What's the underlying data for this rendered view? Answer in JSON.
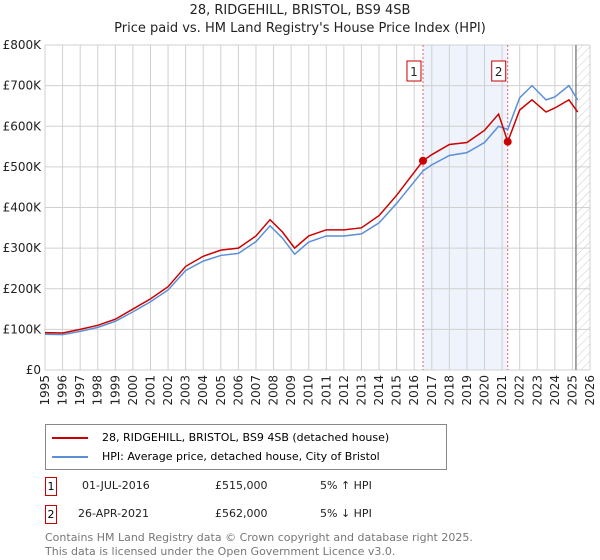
{
  "chart_data": {
    "type": "line",
    "title": "28, RIDGEHILL, BRISTOL, BS9 4SB",
    "subtitle": "Price paid vs. HM Land Registry's House Price Index (HPI)",
    "xlim": [
      1995,
      2026
    ],
    "ylim": [
      0,
      800000
    ],
    "x_ticks": [
      "1995",
      "1996",
      "1997",
      "1998",
      "1999",
      "2000",
      "2001",
      "2002",
      "2003",
      "2004",
      "2005",
      "2006",
      "2007",
      "2008",
      "2009",
      "2010",
      "2011",
      "2012",
      "2013",
      "2014",
      "2015",
      "2016",
      "2017",
      "2018",
      "2019",
      "2020",
      "2021",
      "2022",
      "2023",
      "2024",
      "2025",
      "2026"
    ],
    "y_ticks": [
      {
        "v": 0,
        "l": "£0"
      },
      {
        "v": 100000,
        "l": "£100K"
      },
      {
        "v": 200000,
        "l": "£200K"
      },
      {
        "v": 300000,
        "l": "£300K"
      },
      {
        "v": 400000,
        "l": "£400K"
      },
      {
        "v": 500000,
        "l": "£500K"
      },
      {
        "v": 600000,
        "l": "£600K"
      },
      {
        "v": 700000,
        "l": "£700K"
      },
      {
        "v": 800000,
        "l": "£800K"
      }
    ],
    "series": [
      {
        "name": "28, RIDGEHILL, BRISTOL, BS9 4SB (detached house)",
        "color": "#cc0000",
        "x": [
          1995,
          1996,
          1997,
          1998,
          1999,
          2000,
          2001,
          2002,
          2003,
          2004,
          2005,
          2006,
          2007,
          2007.8,
          2008.5,
          2009.2,
          2010,
          2011,
          2012,
          2013,
          2014,
          2015,
          2016.5,
          2017,
          2018,
          2019,
          2020,
          2020.8,
          2021.32,
          2022,
          2022.7,
          2023.5,
          2024,
          2024.8,
          2025.3
        ],
        "y": [
          92000,
          91000,
          100000,
          110000,
          125000,
          150000,
          175000,
          205000,
          255000,
          280000,
          295000,
          300000,
          330000,
          370000,
          340000,
          300000,
          330000,
          345000,
          345000,
          350000,
          380000,
          430000,
          515000,
          530000,
          555000,
          560000,
          590000,
          630000,
          562000,
          640000,
          665000,
          635000,
          645000,
          665000,
          635000
        ]
      },
      {
        "name": "HPI: Average price, detached house, City of Bristol",
        "color": "#5b8fd6",
        "x": [
          1995,
          1996,
          1997,
          1998,
          1999,
          2000,
          2001,
          2002,
          2003,
          2004,
          2005,
          2006,
          2007,
          2007.8,
          2008.5,
          2009.2,
          2010,
          2011,
          2012,
          2013,
          2014,
          2015,
          2016.5,
          2017,
          2018,
          2019,
          2020,
          2020.8,
          2021.32,
          2022,
          2022.7,
          2023.5,
          2024,
          2024.8,
          2025.3
        ],
        "y": [
          88000,
          87000,
          95000,
          105000,
          120000,
          143000,
          168000,
          197000,
          245000,
          268000,
          282000,
          287000,
          316000,
          355000,
          325000,
          285000,
          315000,
          330000,
          330000,
          335000,
          362000,
          410000,
          490000,
          505000,
          528000,
          535000,
          560000,
          600000,
          592000,
          670000,
          700000,
          665000,
          672000,
          700000,
          665000
        ]
      }
    ],
    "sales": [
      {
        "label": "1",
        "x": 2016.5,
        "y": 515000,
        "date": "01-JUL-2016",
        "price": "£515,000",
        "hpi": "5% ↑ HPI"
      },
      {
        "label": "2",
        "x": 2021.32,
        "y": 562000,
        "date": "26-APR-2021",
        "price": "£562,000",
        "hpi": "5% ↓ HPI"
      }
    ],
    "forecast_start": 2025.2
  },
  "footer": [
    "Contains HM Land Registry data © Crown copyright and database right 2025.",
    "This data is licensed under the Open Government Licence v3.0."
  ]
}
